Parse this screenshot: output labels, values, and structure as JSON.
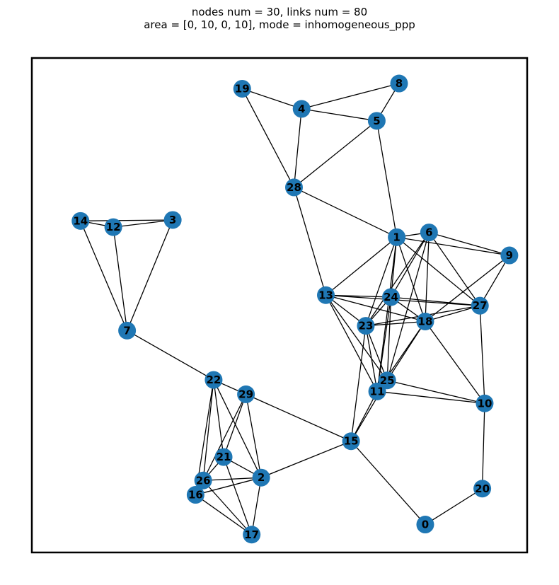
{
  "title_lines": [
    "nodes num = 30, links num = 80",
    "area = [0, 10, 0, 10], mode = inhomogeneous_ppp"
  ],
  "graph": {
    "node_color": "#1f77b4",
    "edge_color": "#000000",
    "nodes": [
      {
        "id": "0",
        "x": 8.05,
        "y": 0.45
      },
      {
        "id": "1",
        "x": 7.45,
        "y": 6.45
      },
      {
        "id": "2",
        "x": 4.6,
        "y": 1.43
      },
      {
        "id": "3",
        "x": 2.74,
        "y": 6.81
      },
      {
        "id": "4",
        "x": 5.45,
        "y": 9.13
      },
      {
        "id": "5",
        "x": 7.03,
        "y": 8.88
      },
      {
        "id": "6",
        "x": 8.13,
        "y": 6.55
      },
      {
        "id": "7",
        "x": 1.78,
        "y": 4.5
      },
      {
        "id": "8",
        "x": 7.5,
        "y": 9.66
      },
      {
        "id": "9",
        "x": 9.82,
        "y": 6.07
      },
      {
        "id": "10",
        "x": 9.3,
        "y": 2.98
      },
      {
        "id": "11",
        "x": 7.04,
        "y": 3.23
      },
      {
        "id": "12",
        "x": 1.49,
        "y": 6.66
      },
      {
        "id": "13",
        "x": 5.96,
        "y": 5.24
      },
      {
        "id": "14",
        "x": 0.8,
        "y": 6.79
      },
      {
        "id": "15",
        "x": 6.49,
        "y": 2.19
      },
      {
        "id": "16",
        "x": 3.22,
        "y": 1.07
      },
      {
        "id": "17",
        "x": 4.4,
        "y": 0.24
      },
      {
        "id": "18",
        "x": 8.05,
        "y": 4.69
      },
      {
        "id": "19",
        "x": 4.2,
        "y": 9.55
      },
      {
        "id": "20",
        "x": 9.25,
        "y": 1.2
      },
      {
        "id": "21",
        "x": 3.81,
        "y": 1.86
      },
      {
        "id": "22",
        "x": 3.6,
        "y": 3.47
      },
      {
        "id": "23",
        "x": 6.8,
        "y": 4.6
      },
      {
        "id": "24",
        "x": 7.33,
        "y": 5.2
      },
      {
        "id": "25",
        "x": 7.25,
        "y": 3.46
      },
      {
        "id": "26",
        "x": 3.38,
        "y": 1.37
      },
      {
        "id": "27",
        "x": 9.2,
        "y": 5.02
      },
      {
        "id": "28",
        "x": 5.29,
        "y": 7.49
      },
      {
        "id": "29",
        "x": 4.28,
        "y": 3.17
      }
    ],
    "edges": [
      [
        "19",
        "4"
      ],
      [
        "19",
        "28"
      ],
      [
        "4",
        "8"
      ],
      [
        "4",
        "5"
      ],
      [
        "4",
        "28"
      ],
      [
        "8",
        "5"
      ],
      [
        "5",
        "28"
      ],
      [
        "5",
        "1"
      ],
      [
        "28",
        "1"
      ],
      [
        "28",
        "13"
      ],
      [
        "14",
        "12"
      ],
      [
        "14",
        "3"
      ],
      [
        "14",
        "7"
      ],
      [
        "12",
        "3"
      ],
      [
        "12",
        "7"
      ],
      [
        "3",
        "7"
      ],
      [
        "7",
        "22"
      ],
      [
        "1",
        "6"
      ],
      [
        "1",
        "9"
      ],
      [
        "1",
        "27"
      ],
      [
        "1",
        "18"
      ],
      [
        "1",
        "13"
      ],
      [
        "1",
        "23"
      ],
      [
        "1",
        "24"
      ],
      [
        "1",
        "11"
      ],
      [
        "6",
        "9"
      ],
      [
        "6",
        "27"
      ],
      [
        "6",
        "23"
      ],
      [
        "6",
        "24"
      ],
      [
        "6",
        "18"
      ],
      [
        "6",
        "25"
      ],
      [
        "9",
        "27"
      ],
      [
        "9",
        "18"
      ],
      [
        "13",
        "24"
      ],
      [
        "13",
        "27"
      ],
      [
        "13",
        "18"
      ],
      [
        "13",
        "23"
      ],
      [
        "13",
        "11"
      ],
      [
        "13",
        "25"
      ],
      [
        "24",
        "27"
      ],
      [
        "24",
        "18"
      ],
      [
        "24",
        "23"
      ],
      [
        "24",
        "11"
      ],
      [
        "24",
        "25"
      ],
      [
        "23",
        "27"
      ],
      [
        "23",
        "18"
      ],
      [
        "23",
        "11"
      ],
      [
        "23",
        "25"
      ],
      [
        "23",
        "15"
      ],
      [
        "18",
        "27"
      ],
      [
        "18",
        "25"
      ],
      [
        "18",
        "11"
      ],
      [
        "18",
        "10"
      ],
      [
        "27",
        "10"
      ],
      [
        "25",
        "11"
      ],
      [
        "25",
        "10"
      ],
      [
        "25",
        "15"
      ],
      [
        "11",
        "10"
      ],
      [
        "11",
        "15"
      ],
      [
        "10",
        "20"
      ],
      [
        "20",
        "0"
      ],
      [
        "0",
        "15"
      ],
      [
        "15",
        "29"
      ],
      [
        "15",
        "2"
      ],
      [
        "22",
        "29"
      ],
      [
        "22",
        "21"
      ],
      [
        "22",
        "26"
      ],
      [
        "22",
        "16"
      ],
      [
        "22",
        "2"
      ],
      [
        "29",
        "21"
      ],
      [
        "29",
        "26"
      ],
      [
        "29",
        "2"
      ],
      [
        "21",
        "26"
      ],
      [
        "21",
        "2"
      ],
      [
        "21",
        "17"
      ],
      [
        "26",
        "2"
      ],
      [
        "26",
        "17"
      ],
      [
        "16",
        "2"
      ],
      [
        "16",
        "17"
      ],
      [
        "2",
        "17"
      ]
    ]
  }
}
